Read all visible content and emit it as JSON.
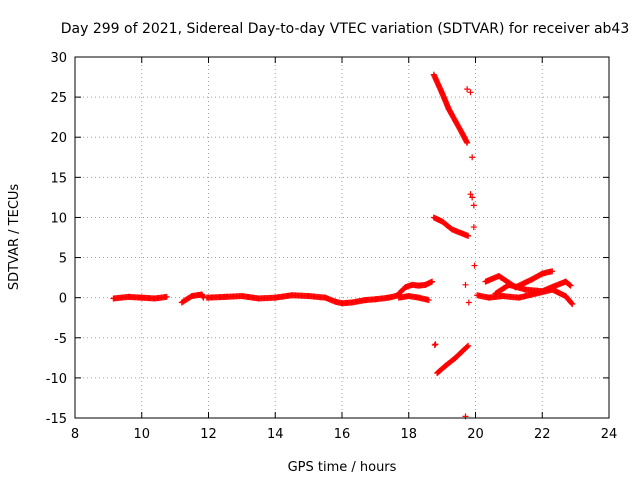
{
  "chart_data": {
    "type": "scatter",
    "title": "Day 299 of 2021, Sidereal Day-to-day VTEC variation (SDTVAR) for receiver ab43",
    "xlabel": "GPS time / hours",
    "ylabel": "SDTVAR / TECUs",
    "xlim": [
      8,
      24
    ],
    "ylim": [
      -15,
      30
    ],
    "xticks": [
      "8",
      "10",
      "12",
      "14",
      "16",
      "18",
      "20",
      "22",
      "24"
    ],
    "yticks": [
      "30",
      "25",
      "20",
      "15",
      "10",
      "5",
      "0",
      "-5",
      "-10",
      "-15"
    ],
    "grid": true,
    "marker": "+",
    "colors": {
      "series": "#ff0000",
      "grid": "#a0a0a0",
      "axis": "#000000"
    },
    "segments": [
      {
        "x": [
          9.15,
          9.6,
          10.0,
          10.4,
          10.75
        ],
        "y": [
          -0.1,
          0.1,
          0.0,
          -0.1,
          0.1
        ]
      },
      {
        "x": [
          11.2,
          11.5,
          11.8,
          11.85
        ],
        "y": [
          -0.6,
          0.2,
          0.4,
          0.0
        ]
      },
      {
        "x": [
          11.95,
          12.5,
          13.0,
          13.5,
          14.0,
          14.5,
          15.0,
          15.5,
          15.8,
          16.0,
          16.3,
          16.7,
          17.0,
          17.4,
          17.7
        ],
        "y": [
          0.0,
          0.1,
          0.2,
          -0.1,
          0.0,
          0.3,
          0.2,
          0.0,
          -0.5,
          -0.7,
          -0.6,
          -0.3,
          -0.2,
          0.0,
          0.3
        ]
      },
      {
        "x": [
          17.7,
          17.9,
          18.1,
          18.3,
          18.5,
          18.7
        ],
        "y": [
          0.5,
          1.3,
          1.6,
          1.5,
          1.6,
          2.0
        ]
      },
      {
        "x": [
          17.7,
          18.0,
          18.3,
          18.6
        ],
        "y": [
          0.0,
          0.2,
          0.0,
          -0.3
        ]
      },
      {
        "x": [
          18.75,
          19.0,
          19.2,
          19.4,
          19.6,
          19.75
        ],
        "y": [
          27.8,
          25.5,
          23.5,
          22.0,
          20.5,
          19.3
        ]
      },
      {
        "x": [
          18.75,
          19.0,
          19.3,
          19.6,
          19.78
        ],
        "y": [
          10.0,
          9.5,
          8.5,
          8.0,
          7.7
        ]
      },
      {
        "x": [
          18.85,
          19.1,
          19.4,
          19.6,
          19.78
        ],
        "y": [
          -9.4,
          -8.5,
          -7.5,
          -6.7,
          -6.0
        ]
      },
      {
        "x": [
          20.05,
          20.4,
          20.8,
          21.3,
          21.8,
          22.3,
          22.7,
          22.9
        ],
        "y": [
          0.3,
          0.0,
          0.2,
          0.0,
          0.5,
          1.0,
          0.2,
          -0.8
        ]
      },
      {
        "x": [
          20.3,
          20.7,
          21.2,
          21.7,
          22.0,
          22.3
        ],
        "y": [
          2.0,
          2.7,
          1.3,
          2.3,
          3.0,
          3.3
        ]
      },
      {
        "x": [
          20.6,
          21.0,
          21.5,
          22.0,
          22.4,
          22.7,
          22.85
        ],
        "y": [
          0.5,
          1.6,
          1.0,
          0.8,
          1.5,
          2.0,
          1.5
        ]
      }
    ],
    "points": [
      {
        "x": [
          18.78,
          19.75,
          19.85,
          19.9,
          19.85,
          19.9,
          19.95,
          19.95,
          19.97,
          19.7,
          19.8,
          19.7,
          18.8
        ],
        "y": [
          -5.9,
          26.0,
          25.6,
          17.5,
          12.9,
          12.5,
          11.5,
          8.8,
          4.0,
          1.6,
          -0.6,
          -14.8,
          -5.8
        ]
      }
    ]
  }
}
